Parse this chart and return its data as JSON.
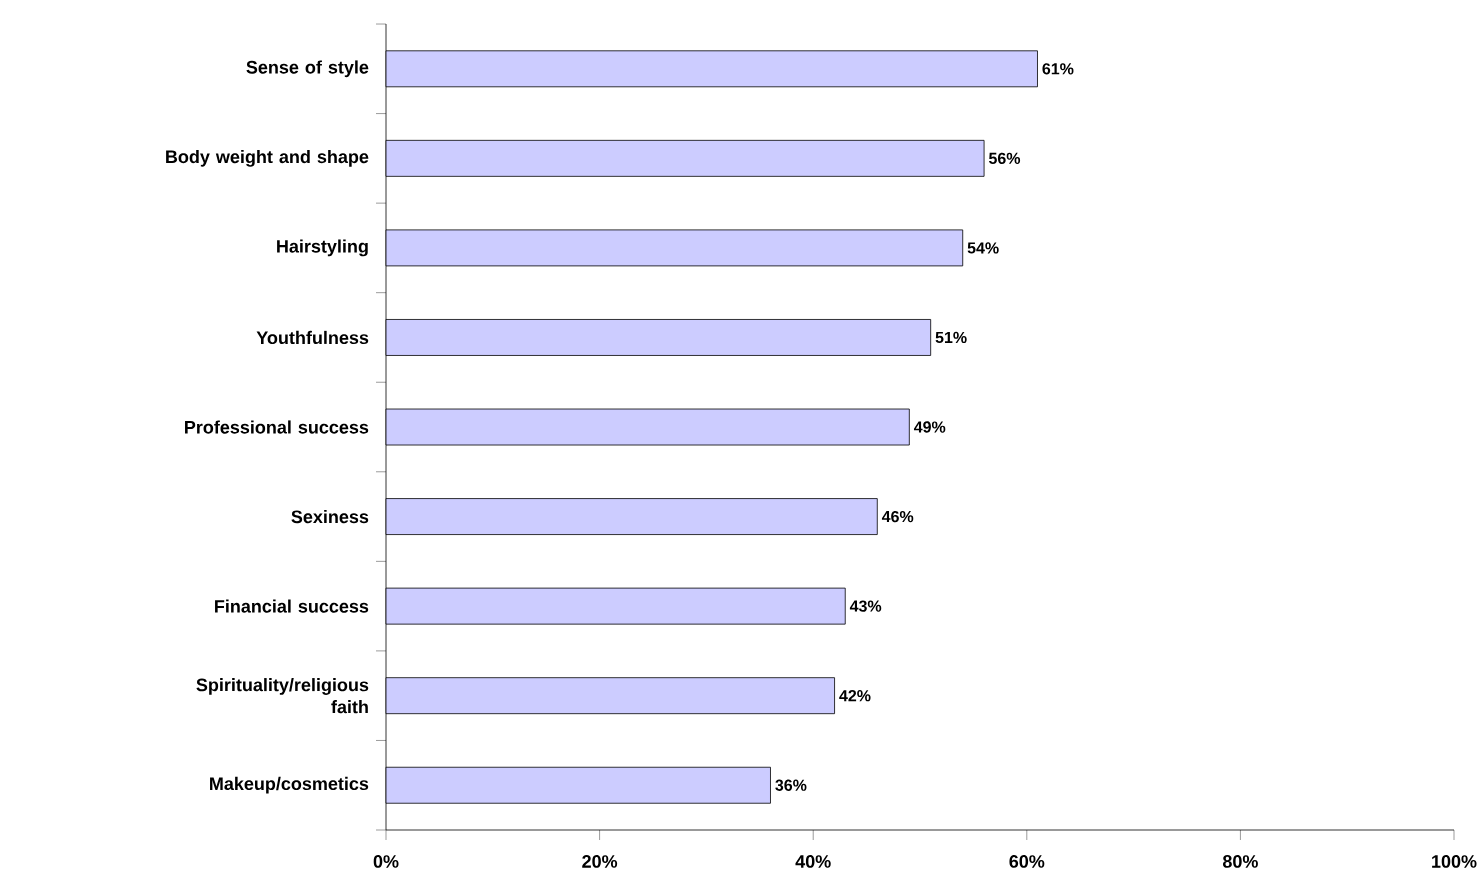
{
  "chart_data": {
    "type": "bar",
    "orientation": "horizontal",
    "categories": [
      "Sense of style",
      "Body weight and shape",
      "Hairstyling",
      "Youthfulness",
      "Professional success",
      "Sexiness",
      "Financial success",
      "Spirituality/religious faith",
      "Makeup/cosmetics"
    ],
    "values": [
      61,
      56,
      54,
      51,
      49,
      46,
      43,
      42,
      36
    ],
    "value_labels": [
      "61%",
      "56%",
      "54%",
      "51%",
      "49%",
      "46%",
      "43%",
      "42%",
      "36%"
    ],
    "color": "#ccccff",
    "xlim": [
      0,
      100
    ],
    "xticks": [
      {
        "value": 0,
        "label": "0%"
      },
      {
        "value": 20,
        "label": "20%"
      },
      {
        "value": 40,
        "label": "40%"
      },
      {
        "value": 60,
        "label": "60%"
      },
      {
        "value": 80,
        "label": "80%"
      },
      {
        "value": 100,
        "label": "100%"
      }
    ],
    "legend": false
  }
}
